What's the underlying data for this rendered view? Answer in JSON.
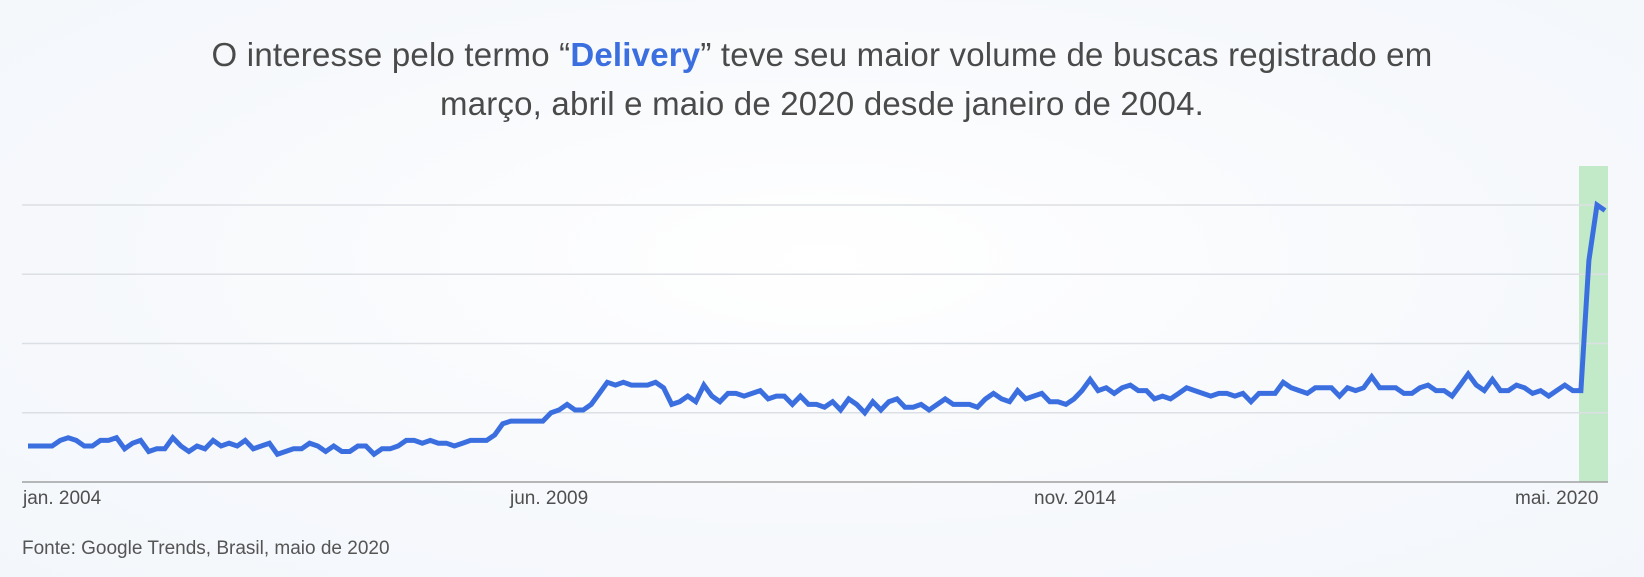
{
  "header": {
    "title_part1": "O interesse pelo termo “",
    "title_highlight": "Delivery",
    "title_part2": "” teve seu maior volume de buscas registrado em",
    "title_line2": "março, abril e maio de 2020 desde janeiro de 2004."
  },
  "footer": {
    "source": "Fonte: Google Trends, Brasil, maio de 2020"
  },
  "colors": {
    "line": "#3b6fe0",
    "highlight_band": "#c2eac8",
    "gridline": "#dcdfe3",
    "axis": "#a0a0a0",
    "title_highlight": "#3b6fe0"
  },
  "chart_data": {
    "type": "line",
    "title": "O interesse pelo termo “Delivery” teve seu maior volume de buscas registrado em março, abril e maio de 2020 desde janeiro de 2004.",
    "xlabel": "",
    "ylabel": "",
    "x_tick_labels": [
      "jan. 2004",
      "jun. 2009",
      "nov. 2014",
      "mai. 2020"
    ],
    "x_range": [
      "jan. 2004",
      "mai. 2020"
    ],
    "ylim": [
      0,
      100
    ],
    "grid": true,
    "gridlines_y": [
      25,
      50,
      75,
      100
    ],
    "legend": null,
    "highlight": {
      "from": "mar. 2020",
      "to": "mai. 2020",
      "color": "#c2eac8"
    },
    "annotation": "Fonte: Google Trends, Brasil, maio de 2020",
    "series": [
      {
        "name": "Delivery",
        "frequency": "monthly",
        "start": "2004-01",
        "values": [
          13,
          13,
          13,
          13,
          15,
          16,
          15,
          13,
          13,
          15,
          15,
          16,
          12,
          14,
          15,
          11,
          12,
          12,
          16,
          13,
          11,
          13,
          12,
          15,
          13,
          14,
          13,
          15,
          12,
          13,
          14,
          10,
          11,
          12,
          12,
          14,
          13,
          11,
          13,
          11,
          11,
          13,
          13,
          10,
          12,
          12,
          13,
          15,
          15,
          14,
          15,
          14,
          14,
          13,
          14,
          15,
          15,
          15,
          17,
          21,
          22,
          22,
          22,
          22,
          22,
          25,
          26,
          28,
          26,
          26,
          28,
          32,
          36,
          35,
          36,
          35,
          35,
          35,
          36,
          34,
          28,
          29,
          31,
          29,
          35,
          31,
          29,
          32,
          32,
          31,
          32,
          33,
          30,
          31,
          31,
          28,
          31,
          28,
          28,
          27,
          29,
          26,
          30,
          28,
          25,
          29,
          26,
          29,
          30,
          27,
          27,
          28,
          26,
          28,
          30,
          28,
          28,
          28,
          27,
          30,
          32,
          30,
          29,
          33,
          30,
          31,
          32,
          29,
          29,
          28,
          30,
          33,
          37,
          33,
          34,
          32,
          34,
          35,
          33,
          33,
          30,
          31,
          30,
          32,
          34,
          33,
          32,
          31,
          32,
          32,
          31,
          32,
          29,
          32,
          32,
          32,
          36,
          34,
          33,
          32,
          34,
          34,
          34,
          31,
          34,
          33,
          34,
          38,
          34,
          34,
          34,
          32,
          32,
          34,
          35,
          33,
          33,
          31,
          35,
          39,
          35,
          33,
          37,
          33,
          33,
          35,
          34,
          32,
          33,
          31,
          33,
          35,
          33,
          33,
          80,
          100,
          98
        ]
      }
    ]
  }
}
